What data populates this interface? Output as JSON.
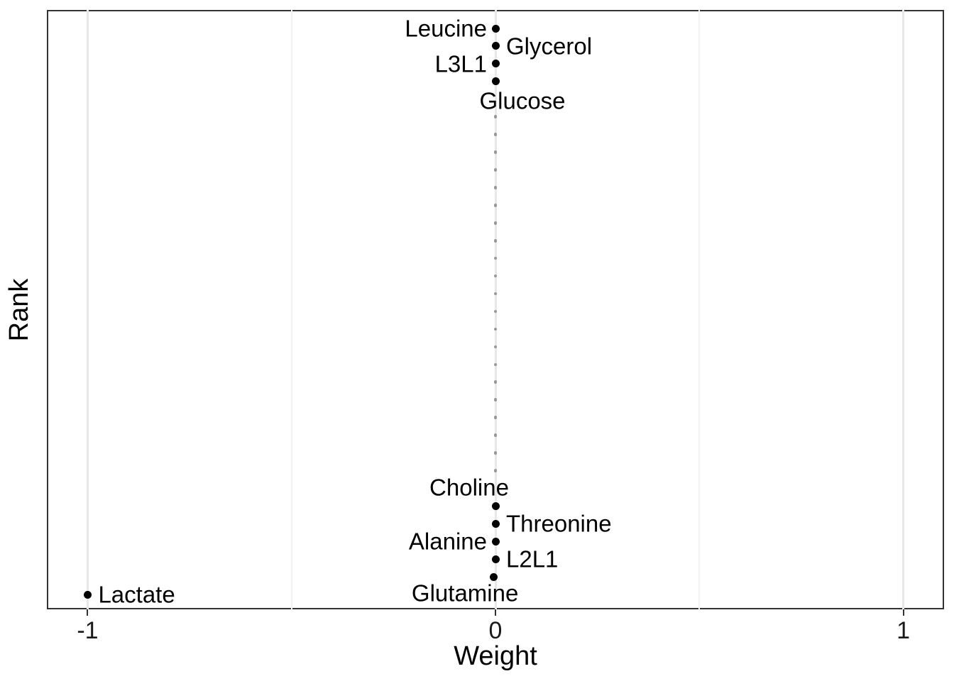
{
  "chart_data": {
    "type": "scatter",
    "title": "",
    "xlabel": "Weight",
    "ylabel": "Rank",
    "xlim": [
      -1.1,
      1.1
    ],
    "x_ticks": [
      -1,
      0,
      1
    ],
    "x_major_grid": [
      -1,
      0,
      1
    ],
    "x_minor_grid": [
      -0.5,
      0.5
    ],
    "y_axis": {
      "variable": "rank",
      "top_rank": 1,
      "bottom_rank": 33,
      "ticks": [],
      "direction": "rank 1 at top"
    },
    "grid": true,
    "legend": false,
    "labeled_points": [
      {
        "label": "Leucine",
        "weight": 0,
        "rank": 1,
        "label_side": "left"
      },
      {
        "label": "Glycerol",
        "weight": 0,
        "rank": 2,
        "label_side": "right"
      },
      {
        "label": "L3L1",
        "weight": 0,
        "rank": 3,
        "label_side": "left"
      },
      {
        "label": "Glucose",
        "weight": 0,
        "rank": 4,
        "label_side": "below-right"
      },
      {
        "label": "Choline",
        "weight": 0,
        "rank": 28,
        "label_side": "above-left"
      },
      {
        "label": "Threonine",
        "weight": 0,
        "rank": 29,
        "label_side": "right"
      },
      {
        "label": "Alanine",
        "weight": 0,
        "rank": 30,
        "label_side": "left"
      },
      {
        "label": "L2L1",
        "weight": 0,
        "rank": 31,
        "label_side": "right"
      },
      {
        "label": "Glutamine",
        "weight": -0.005,
        "rank": 32,
        "label_side": "below-left"
      },
      {
        "label": "Lactate",
        "weight": -1,
        "rank": 33,
        "label_side": "right"
      }
    ],
    "unlabeled_points": {
      "weight": 0,
      "rank_from": 6,
      "rank_to": 26,
      "note": "small grey dots along weight = 0"
    },
    "colors": {
      "point": "#000000",
      "minor_point": "#999999",
      "grid_major": "#e8e8e8",
      "grid_minor": "#f2f2f2",
      "panel_border": "#333333",
      "tick_mark": "#333333",
      "axis_text": "#1a1a1a",
      "label_text": "#000000",
      "background": "#ffffff"
    }
  }
}
